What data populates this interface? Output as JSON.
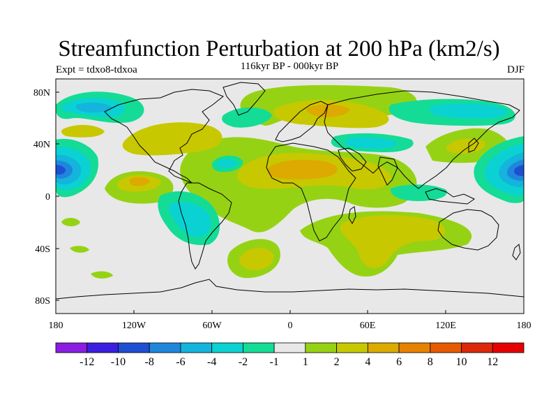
{
  "title": "Streamfunction Perturbation at 200 hPa (km2/s)",
  "subtitle": "116kyr BP - 000kyr BP",
  "experiment": "Expt = tdxo8-tdxoa",
  "season": "DJF",
  "map": {
    "projection": "cylindrical-equidistant",
    "lon_range": [
      -180,
      180
    ],
    "lat_range": [
      -90,
      90
    ],
    "x_ticks": [
      "180",
      "120W",
      "60W",
      "0",
      "60E",
      "120E",
      "180"
    ],
    "y_ticks": [
      "80N",
      "40N",
      "0",
      "40S",
      "80S"
    ],
    "land_background": "#e8e8e8",
    "coastline_color": "#000000"
  },
  "colorbar": {
    "colors": [
      "#8a1ee0",
      "#3c1ee0",
      "#1e4fd2",
      "#1e87dc",
      "#14b4dc",
      "#0ad2d2",
      "#14dc96",
      "#e8e8e8",
      "#96d214",
      "#c8c800",
      "#dcaa00",
      "#e68200",
      "#e65a00",
      "#dc280a",
      "#e60000"
    ],
    "labels": [
      "-12",
      "-10",
      "-8",
      "-6",
      "-4",
      "-2",
      "-1",
      "1",
      "2",
      "4",
      "6",
      "8",
      "10",
      "12"
    ]
  }
}
